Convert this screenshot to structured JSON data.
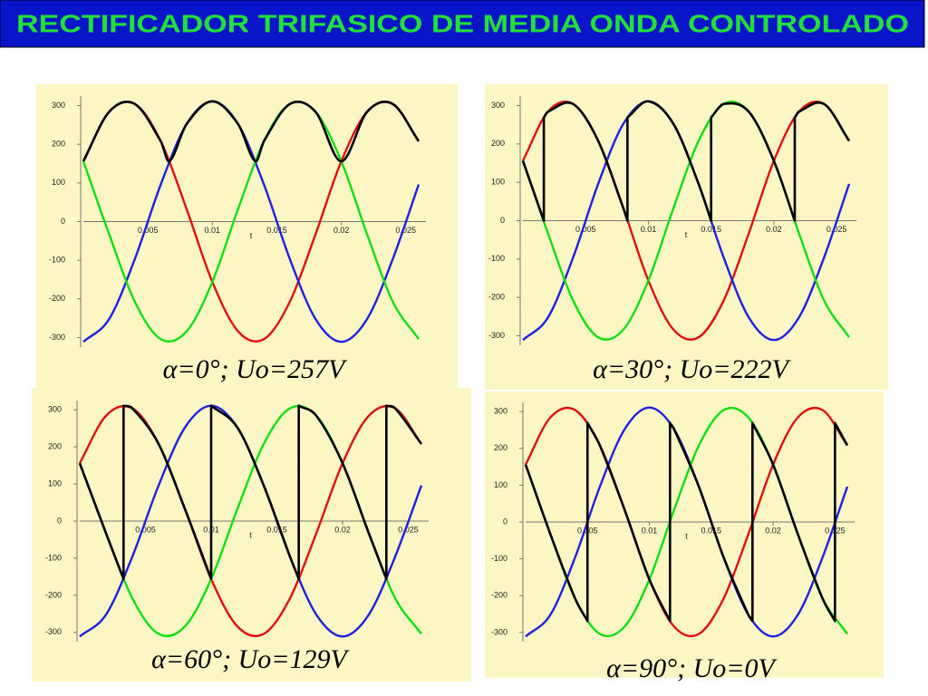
{
  "title": "RECTIFICADOR TRIFASICO DE MEDIA ONDA  CONTROLADO",
  "chart_data": [
    {
      "type": "line",
      "caption": "α=0°; Uo=257V",
      "xlabel": "t",
      "x": [
        0,
        0.002,
        0.004,
        0.006,
        0.008,
        0.01,
        0.012,
        0.014,
        0.016,
        0.018,
        0.02,
        0.022,
        0.024,
        0.026
      ],
      "series": [
        {
          "color": "#e01010",
          "values": [
            156,
            284,
            304,
            208,
            33,
            -156,
            -284,
            -304,
            -208,
            -33,
            156,
            284,
            304,
            208
          ]
        },
        {
          "color": "#2020e0",
          "values": [
            -311,
            -252,
            -96,
            96,
            252,
            311,
            252,
            96,
            -96,
            -252,
            -311,
            -252,
            -96,
            96
          ]
        },
        {
          "color": "#10e010",
          "values": [
            156,
            -33,
            -208,
            -304,
            -284,
            -156,
            33,
            208,
            304,
            284,
            156,
            -33,
            -208,
            -304
          ]
        },
        {
          "color": "#000000",
          "x": [
            0,
            0.002,
            0.004,
            0.006,
            0.006667,
            0.008,
            0.01,
            0.012,
            0.013333,
            0.014,
            0.016,
            0.018,
            0.02,
            0.022,
            0.024,
            0.026
          ],
          "values": [
            156,
            284,
            304,
            208,
            156,
            252,
            311,
            252,
            156,
            208,
            304,
            284,
            156,
            284,
            304,
            208
          ]
        }
      ],
      "xlim": [
        0,
        0.026
      ],
      "ylim": [
        -320,
        320
      ],
      "xticks": [
        0.005,
        0.01,
        0.015,
        0.02,
        0.025
      ],
      "yticks": [
        -300,
        -200,
        -100,
        0,
        100,
        200,
        300
      ]
    },
    {
      "type": "line",
      "caption": "α=30°; Uo=222V",
      "xlabel": "t",
      "x": [
        0,
        0.002,
        0.004,
        0.006,
        0.008,
        0.01,
        0.012,
        0.014,
        0.016,
        0.018,
        0.02,
        0.022,
        0.024,
        0.026
      ],
      "series": [
        {
          "color": "#e01010",
          "values": [
            156,
            284,
            304,
            208,
            33,
            -156,
            -284,
            -304,
            -208,
            -33,
            156,
            284,
            304,
            208
          ]
        },
        {
          "color": "#2020e0",
          "values": [
            -311,
            -252,
            -96,
            96,
            252,
            311,
            252,
            96,
            -96,
            -252,
            -311,
            -252,
            -96,
            96
          ]
        },
        {
          "color": "#10e010",
          "values": [
            156,
            -33,
            -208,
            -304,
            -284,
            -156,
            33,
            208,
            304,
            284,
            156,
            -33,
            -208,
            -304
          ]
        },
        {
          "color": "#000000",
          "x": [
            0,
            0.001667,
            0.001667,
            0.002,
            0.004,
            0.006,
            0.008,
            0.008333,
            0.008333,
            0.01,
            0.012,
            0.014,
            0.015,
            0.015,
            0.016,
            0.018,
            0.02,
            0.021667,
            0.021667,
            0.022,
            0.024,
            0.026
          ],
          "values": [
            156,
            0,
            269,
            284,
            304,
            208,
            33,
            0,
            269,
            311,
            252,
            96,
            0,
            269,
            304,
            284,
            156,
            0,
            269,
            284,
            304,
            208
          ]
        }
      ],
      "xlim": [
        0,
        0.026
      ],
      "ylim": [
        -320,
        320
      ],
      "xticks": [
        0.005,
        0.01,
        0.015,
        0.02,
        0.025
      ],
      "yticks": [
        -300,
        -200,
        -100,
        0,
        100,
        200,
        300
      ]
    },
    {
      "type": "line",
      "caption": "α=60°; Uo=129V",
      "xlabel": "t",
      "x": [
        0,
        0.002,
        0.004,
        0.006,
        0.008,
        0.01,
        0.012,
        0.014,
        0.016,
        0.018,
        0.02,
        0.022,
        0.024,
        0.026
      ],
      "series": [
        {
          "color": "#e01010",
          "values": [
            156,
            284,
            304,
            208,
            33,
            -156,
            -284,
            -304,
            -208,
            -33,
            156,
            284,
            304,
            208
          ]
        },
        {
          "color": "#2020e0",
          "values": [
            -311,
            -252,
            -96,
            96,
            252,
            311,
            252,
            96,
            -96,
            -252,
            -311,
            -252,
            -96,
            96
          ]
        },
        {
          "color": "#10e010",
          "values": [
            156,
            -33,
            -208,
            -304,
            -284,
            -156,
            33,
            208,
            304,
            284,
            156,
            -33,
            -208,
            -304
          ]
        },
        {
          "color": "#000000",
          "x": [
            0,
            0.002,
            0.003333,
            0.003333,
            0.004,
            0.006,
            0.008,
            0.01,
            0.01,
            0.012,
            0.014,
            0.016,
            0.016667,
            0.016667,
            0.018,
            0.02,
            0.022,
            0.023333,
            0.023333,
            0.024,
            0.026
          ],
          "values": [
            156,
            -33,
            -156,
            311,
            304,
            208,
            33,
            -156,
            311,
            252,
            96,
            -96,
            -156,
            311,
            284,
            156,
            -33,
            -156,
            311,
            304,
            208
          ]
        }
      ],
      "xlim": [
        0,
        0.026
      ],
      "ylim": [
        -320,
        320
      ],
      "xticks": [
        0.005,
        0.01,
        0.015,
        0.02,
        0.025
      ],
      "yticks": [
        -300,
        -200,
        -100,
        0,
        100,
        200,
        300
      ]
    },
    {
      "type": "line",
      "caption": "α=90°; Uo=0V",
      "xlabel": "t",
      "x": [
        0,
        0.002,
        0.004,
        0.006,
        0.008,
        0.01,
        0.012,
        0.014,
        0.016,
        0.018,
        0.02,
        0.022,
        0.024,
        0.026
      ],
      "series": [
        {
          "color": "#e01010",
          "values": [
            156,
            284,
            304,
            208,
            33,
            -156,
            -284,
            -304,
            -208,
            -33,
            156,
            284,
            304,
            208
          ]
        },
        {
          "color": "#2020e0",
          "values": [
            -311,
            -252,
            -96,
            96,
            252,
            311,
            252,
            96,
            -96,
            -252,
            -311,
            -252,
            -96,
            96
          ]
        },
        {
          "color": "#10e010",
          "values": [
            156,
            -33,
            -208,
            -304,
            -284,
            -156,
            33,
            208,
            304,
            284,
            156,
            -33,
            -208,
            -304
          ]
        },
        {
          "color": "#000000",
          "x": [
            0,
            0.002,
            0.004,
            0.005,
            0.005,
            0.006,
            0.008,
            0.01,
            0.011667,
            0.011667,
            0.012,
            0.014,
            0.016,
            0.018,
            0.018333,
            0.018333,
            0.02,
            0.022,
            0.024,
            0.025,
            0.025,
            0.026
          ],
          "values": [
            156,
            -33,
            -208,
            -269,
            269,
            208,
            33,
            -156,
            -269,
            269,
            252,
            96,
            -96,
            -252,
            -269,
            269,
            156,
            -33,
            -208,
            -269,
            269,
            208
          ]
        }
      ],
      "xlim": [
        0,
        0.026
      ],
      "ylim": [
        -320,
        320
      ],
      "xticks": [
        0.005,
        0.01,
        0.015,
        0.02,
        0.025
      ],
      "yticks": [
        -300,
        -200,
        -100,
        0,
        100,
        200,
        300
      ]
    }
  ]
}
